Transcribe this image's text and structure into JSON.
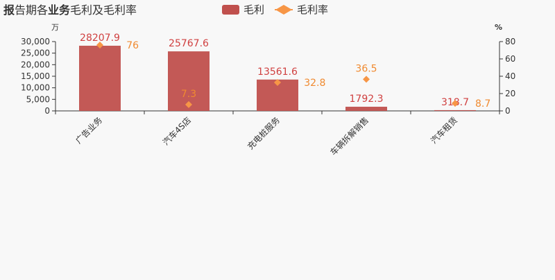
{
  "title_bold1": "报",
  "title_part1": "告期各",
  "title_bold2": "业务",
  "title_part2": "毛利及毛利率",
  "chart_data": {
    "type": "bar+line",
    "categories": [
      "广告业务",
      "汽车4S店",
      "充电桩服务",
      "车辆拆解销售",
      "汽车租赁"
    ],
    "series": [
      {
        "name": "毛利",
        "type": "bar",
        "axis": "left",
        "color": "#c0504d",
        "values": [
          28207.9,
          25767.6,
          13561.6,
          1792.3,
          318.7
        ]
      },
      {
        "name": "毛利率",
        "type": "scatter",
        "axis": "right",
        "color": "#f79646",
        "values": [
          76,
          7.3,
          32.8,
          36.5,
          8.7
        ]
      }
    ],
    "left_axis": {
      "unit": "万",
      "ylim": [
        0,
        30000
      ],
      "ticks": [
        0,
        5000,
        10000,
        15000,
        20000,
        25000,
        30000
      ],
      "tick_labels": [
        "0",
        "5,000",
        "10,000",
        "15,000",
        "20,000",
        "25,000",
        "30,000"
      ]
    },
    "right_axis": {
      "unit": "%",
      "ylim": [
        0,
        80
      ],
      "ticks": [
        0,
        20,
        40,
        60,
        80
      ],
      "tick_labels": [
        "0",
        "20",
        "40",
        "60",
        "80"
      ]
    },
    "bar_labels": [
      "28207.9",
      "25767.6",
      "13561.6",
      "1792.3",
      "318.7"
    ],
    "point_labels": [
      "76",
      "7.3",
      "32.8",
      "36.5",
      "8.7"
    ],
    "legend": {
      "position": "top",
      "labels": [
        "毛利",
        "毛利率"
      ]
    },
    "grid": false
  }
}
